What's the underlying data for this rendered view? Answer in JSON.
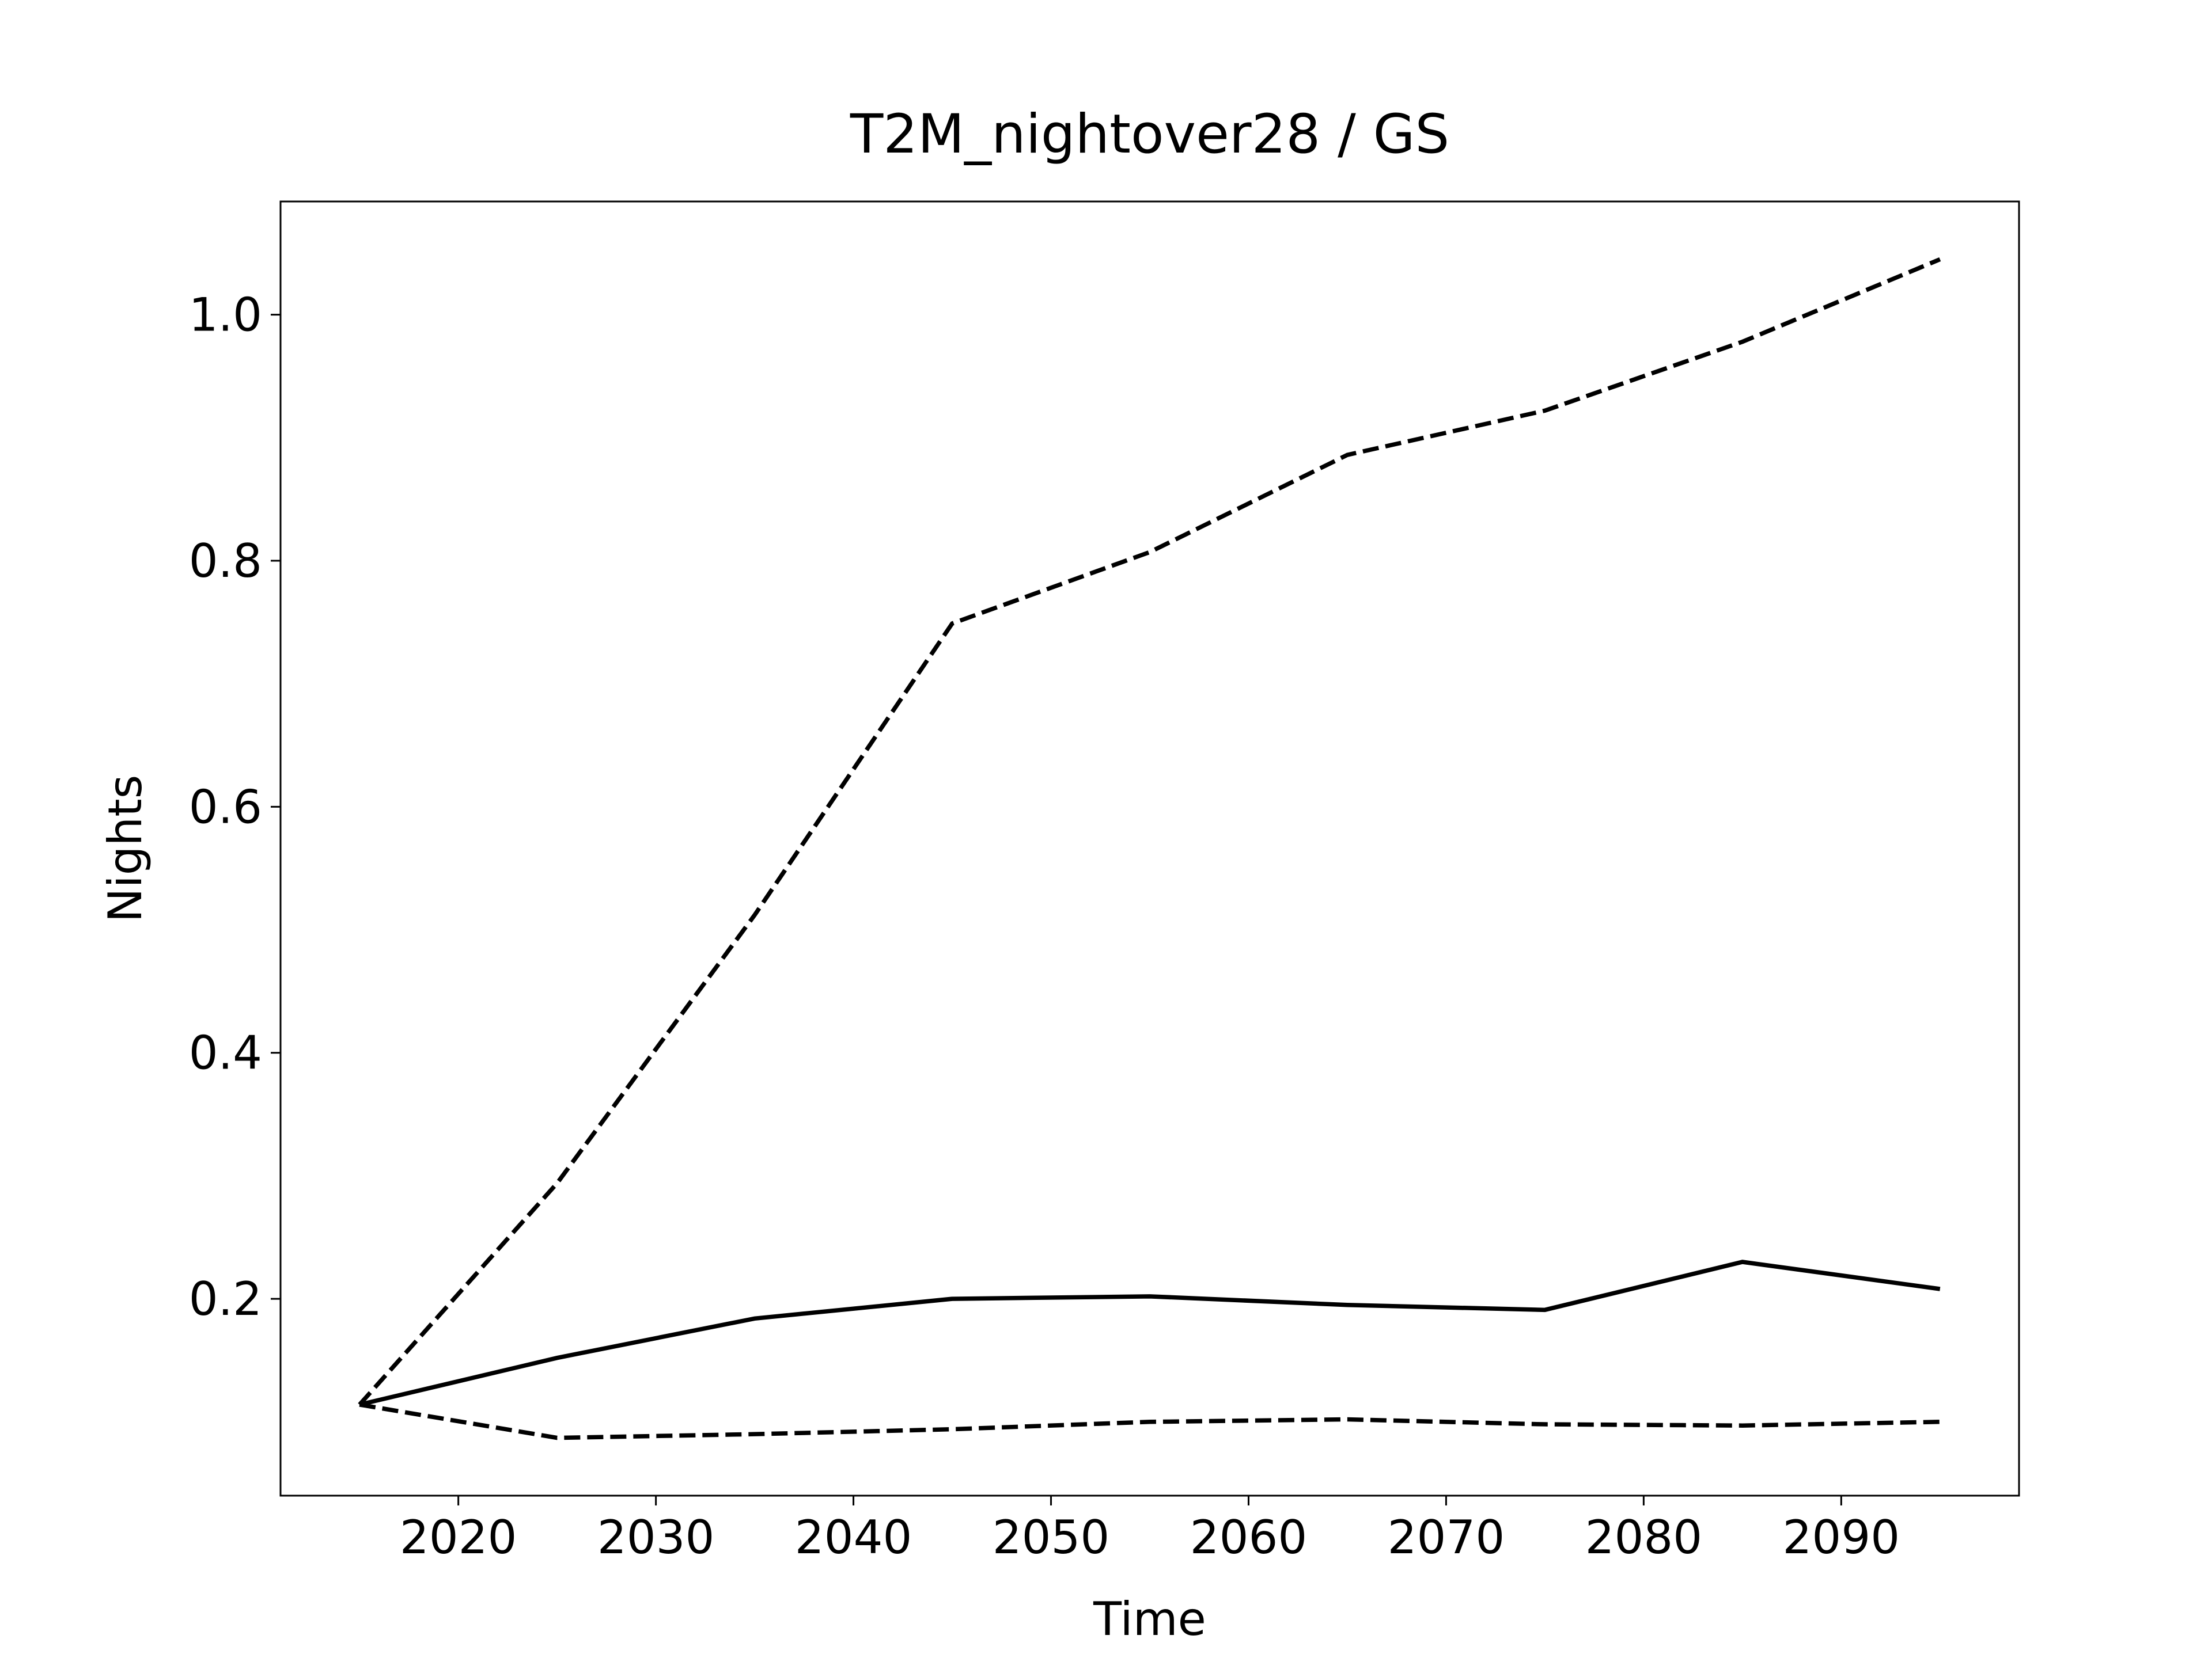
{
  "chart_data": {
    "type": "line",
    "title": "T2M_nightover28 / GS",
    "x_label": "Time",
    "y_label": "Nights",
    "x": [
      2015,
      2025,
      2035,
      2045,
      2055,
      2065,
      2075,
      2085,
      2095
    ],
    "series": [
      {
        "color": "#000000",
        "dashed": false,
        "values": [
          0.114,
          0.152,
          0.184,
          0.2,
          0.202,
          0.195,
          0.191,
          0.23,
          0.208
        ]
      },
      {
        "color": "#000000",
        "dashed": true,
        "values": [
          0.114,
          0.294,
          0.512,
          0.749,
          0.807,
          0.886,
          0.922,
          0.978,
          1.045
        ]
      },
      {
        "color": "#000000",
        "dashed": true,
        "values": [
          0.114,
          0.087,
          0.09,
          0.094,
          0.1,
          0.102,
          0.098,
          0.097,
          0.1
        ]
      }
    ],
    "xlim": [
      2011,
      2099
    ],
    "ylim": [
      0.04,
      1.092
    ],
    "xticks": [
      2020,
      2030,
      2040,
      2050,
      2060,
      2070,
      2080,
      2090
    ],
    "yticks": [
      0.2,
      0.4,
      0.6,
      0.8,
      {
        "value": 1.0,
        "label": "1.0"
      }
    ],
    "grid": false
  }
}
